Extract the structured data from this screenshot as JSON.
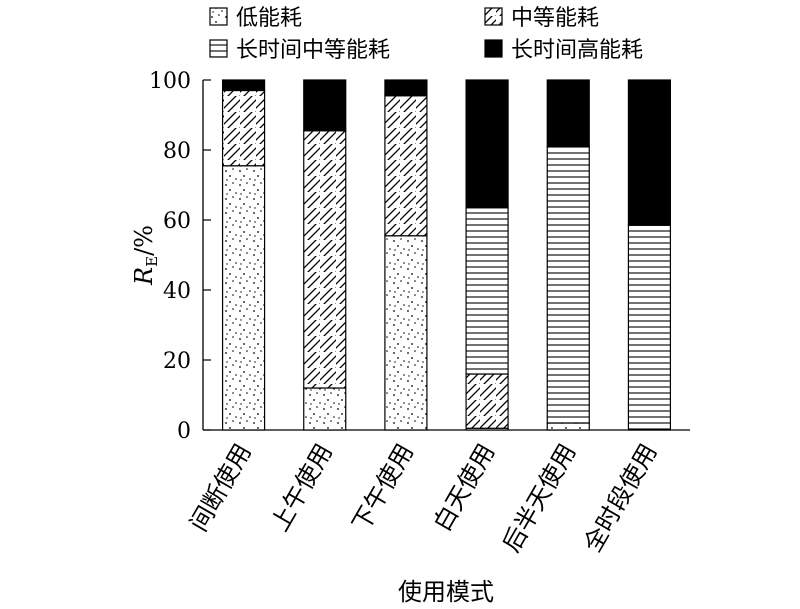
{
  "chart_data": {
    "type": "bar",
    "stacked": true,
    "categories": [
      "间断使用",
      "上午使用",
      "下午使用",
      "白天使用",
      "后半天使用",
      "全时段使用"
    ],
    "series": [
      {
        "name": "低能耗",
        "pattern": "dots",
        "values": [
          75.5,
          12,
          55.5,
          0.5,
          2,
          0
        ]
      },
      {
        "name": "中等能耗",
        "pattern": "diagonal",
        "values": [
          21.5,
          73.5,
          40,
          15.5,
          0,
          0
        ]
      },
      {
        "name": "长时间中等能耗",
        "pattern": "horizontal",
        "values": [
          0,
          0,
          0,
          47.5,
          79,
          58.5
        ]
      },
      {
        "name": "长时间高能耗",
        "pattern": "solid",
        "values": [
          3,
          14.5,
          4.5,
          36.5,
          19,
          41.5
        ]
      }
    ],
    "xlabel": "使用模式",
    "ylabel_main": "R",
    "ylabel_sub": "E",
    "ylabel_unit": "/%",
    "ylim": [
      0,
      100
    ],
    "yticks": [
      0,
      20,
      40,
      60,
      80,
      100
    ],
    "grid": false,
    "legend_position": "top",
    "colors": {
      "ink": "#000000",
      "fill": "#ffffff"
    }
  }
}
